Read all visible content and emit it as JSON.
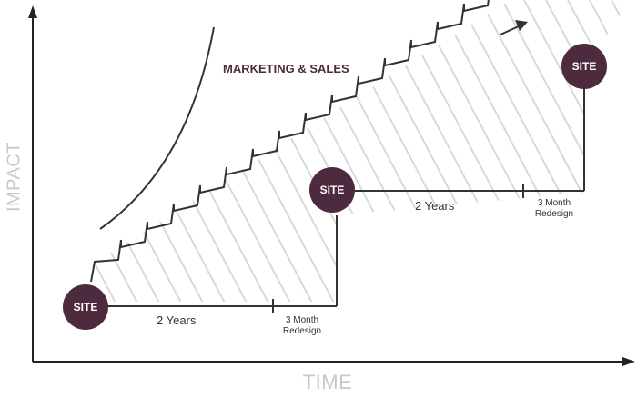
{
  "axes": {
    "x_label": "TIME",
    "y_label": "IMPACT"
  },
  "curve_label": "MARKETING & SALES",
  "sites": [
    {
      "label": "SITE"
    },
    {
      "label": "SITE"
    },
    {
      "label": "SITE"
    }
  ],
  "cycles": [
    {
      "duration_label": "2 Years",
      "redesign_line1": "3 Month",
      "redesign_line2": "Redesign"
    },
    {
      "duration_label": "2 Years",
      "redesign_line1": "3 Month",
      "redesign_line2": "Redesign"
    }
  ],
  "colors": {
    "site_fill": "#4e2a3f",
    "hatch": "#d9d9d9",
    "axis_text": "#c8c8c8",
    "line": "#333333"
  }
}
